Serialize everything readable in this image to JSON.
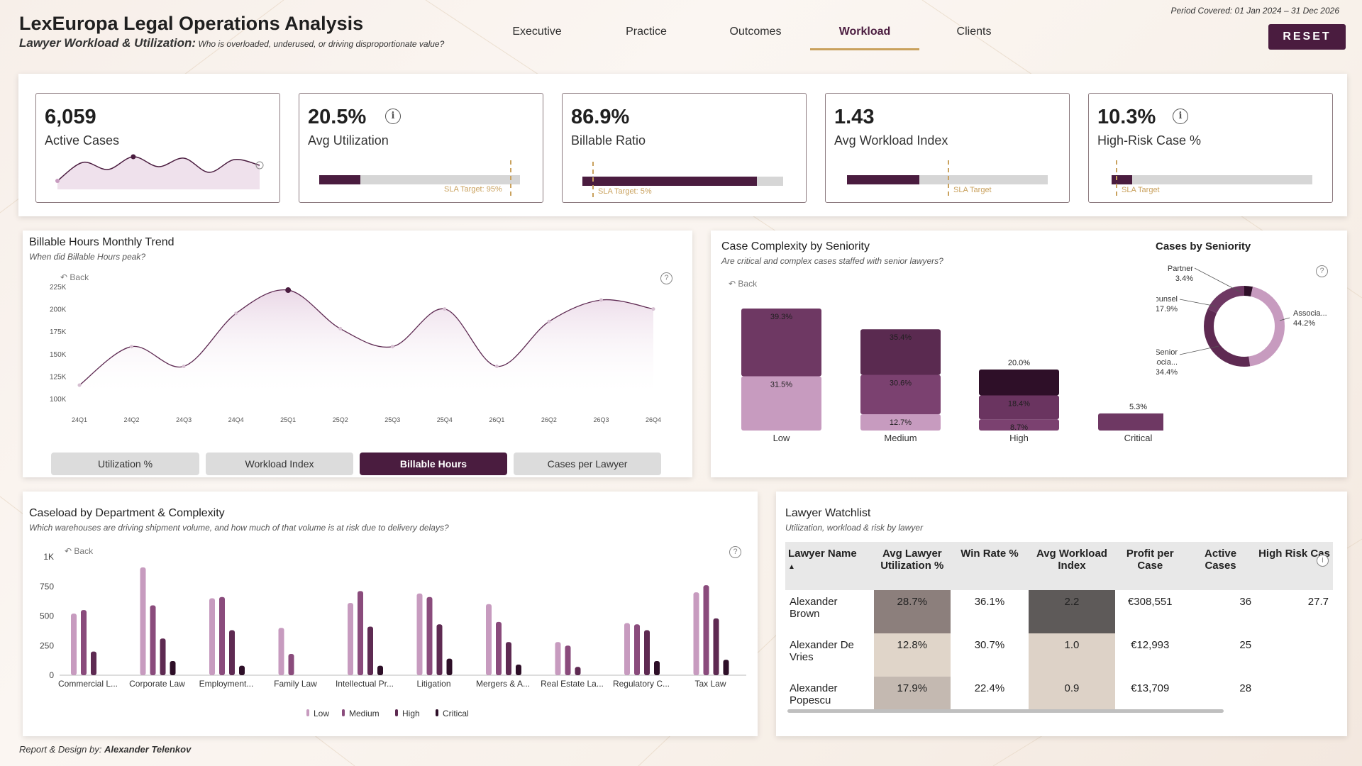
{
  "header": {
    "title": "LexEuropa Legal Operations Analysis",
    "subtitle_bold": "Lawyer Workload & Utilization:",
    "subtitle_rest": "Who is overloaded, underused, or driving disproportionate value?",
    "period": "Period Covered: 01 Jan 2024 – 31 Dec 2026",
    "reset_label": "RESET",
    "nav": [
      {
        "label": "Executive",
        "active": false
      },
      {
        "label": "Practice",
        "active": false
      },
      {
        "label": "Outcomes",
        "active": false
      },
      {
        "label": "Workload",
        "active": true
      },
      {
        "label": "Clients",
        "active": false
      }
    ]
  },
  "kpis": {
    "active_cases": {
      "value": "6,059",
      "label": "Active Cases"
    },
    "avg_utilization": {
      "value": "20.5%",
      "label": "Avg Utilization",
      "bar_fraction": 0.205,
      "sla_fraction": 0.95,
      "sla_label": "SLA Target: 95%"
    },
    "billable_ratio": {
      "value": "86.9%",
      "label": "Billable Ratio",
      "bar_fraction": 0.869,
      "sla_fraction": 0.05,
      "sla_label": "SLA Target: 5%"
    },
    "avg_workload_index": {
      "value": "1.43",
      "label": "Avg Workload Index",
      "bar_fraction": 0.36,
      "sla_fraction": 0.5,
      "sla_label": "SLA Target"
    },
    "high_risk_pct": {
      "value": "10.3%",
      "label": "High-Risk Case %",
      "bar_fraction": 0.103,
      "sla_fraction": 0.02,
      "sla_label": "SLA Target"
    }
  },
  "billable_trend": {
    "title": "Billable Hours Monthly Trend",
    "subtitle": "When did Billable Hours peak?",
    "back_label": "Back",
    "help": "?",
    "tabs": [
      {
        "label": "Utilization %",
        "active": false
      },
      {
        "label": "Workload Index",
        "active": false
      },
      {
        "label": "Billable Hours",
        "active": true
      },
      {
        "label": "Cases per Lawyer",
        "active": false
      }
    ]
  },
  "complexity": {
    "title": "Case Complexity by Seniority",
    "subtitle": "Are critical and complex cases staffed with senior lawyers?",
    "back_label": "Back"
  },
  "seniority_donut": {
    "title": "Cases by Seniority",
    "labels": [
      {
        "name": "Partner",
        "pct": "3.4%"
      },
      {
        "name": "Counsel",
        "pct": "17.9%"
      },
      {
        "name": "Associa...",
        "pct": "44.2%"
      },
      {
        "name": "Senior Associa...",
        "pct": "34.4%"
      }
    ]
  },
  "caseload": {
    "title": "Caseload by Department & Complexity",
    "subtitle": "Which warehouses are driving shipment volume, and how much of that volume is at risk due to delivery delays?",
    "back_label": "Back",
    "legend": [
      "Low",
      "Medium",
      "High",
      "Critical"
    ]
  },
  "watchlist": {
    "title": "Lawyer Watchlist",
    "subtitle": "Utilization, workload & risk by lawyer",
    "columns": [
      "Lawyer Name",
      "Avg Lawyer Utilization %",
      "Win Rate %",
      "Avg Workload Index",
      "Profit per Case",
      "Active Cases",
      "High Risk Cas"
    ],
    "rows": [
      {
        "name": "Alexander Brown",
        "util": "28.7%",
        "win": "36.1%",
        "wli": "2.2",
        "profit": "€308,551",
        "active": "36",
        "risk": "27.7"
      },
      {
        "name": "Alexander De Vries",
        "util": "12.8%",
        "win": "30.7%",
        "wli": "1.0",
        "profit": "€12,993",
        "active": "25",
        "risk": ""
      },
      {
        "name": "Alexander Popescu",
        "util": "17.9%",
        "win": "22.4%",
        "wli": "0.9",
        "profit": "€13,709",
        "active": "28",
        "risk": ""
      }
    ]
  },
  "footer": {
    "prefix": "Report & Design by:",
    "author": "Alexander Telenkov"
  },
  "colors": {
    "primary": "#4a1c3f",
    "gold": "#c9a15d",
    "low": "#c79bbf",
    "medium": "#8a4b7c",
    "high": "#5e2a52",
    "critical": "#2e0f28"
  },
  "chart_data": [
    {
      "type": "line",
      "title": "Billable Hours Monthly Trend",
      "categories": [
        "24Q1",
        "24Q2",
        "24Q3",
        "24Q4",
        "25Q1",
        "25Q2",
        "25Q3",
        "25Q4",
        "26Q1",
        "26Q2",
        "26Q3",
        "26Q4"
      ],
      "values": [
        115000,
        158000,
        136000,
        195000,
        221000,
        178000,
        158000,
        200000,
        136000,
        186000,
        210000,
        200000
      ],
      "ylim": [
        100000,
        225000
      ],
      "yticks": [
        "100K",
        "125K",
        "150K",
        "175K",
        "200K",
        "225K"
      ]
    },
    {
      "type": "bar",
      "title": "Case Complexity by Seniority",
      "categories": [
        "Low",
        "Medium",
        "High",
        "Critical"
      ],
      "stacked": true,
      "segments": [
        {
          "category": "Low",
          "stack": [
            {
              "value": 31.5,
              "label": "31.5%"
            },
            {
              "value": 39.3,
              "label": "39.3%"
            }
          ],
          "total": 100
        },
        {
          "category": "Medium",
          "stack": [
            {
              "value": 12.7,
              "label": "12.7%"
            },
            {
              "value": 30.6,
              "label": "30.6%"
            },
            {
              "value": 35.4,
              "label": "35.4%"
            }
          ],
          "total": 83
        },
        {
          "category": "High",
          "stack": [
            {
              "value": 8.7,
              "label": "8.7%"
            },
            {
              "value": 18.4,
              "label": "18.4%"
            },
            {
              "value": 20.0,
              "label": "20.0%"
            }
          ],
          "total": 50
        },
        {
          "category": "Critical",
          "stack": [
            {
              "value": 5.3,
              "label": "5.3%"
            }
          ],
          "total": 14
        }
      ]
    },
    {
      "type": "pie",
      "title": "Cases by Seniority",
      "slices": [
        {
          "name": "Partner",
          "value": 3.4
        },
        {
          "name": "Counsel",
          "value": 17.9
        },
        {
          "name": "Associa...",
          "value": 44.2
        },
        {
          "name": "Senior Associa...",
          "value": 34.4
        }
      ]
    },
    {
      "type": "bar",
      "title": "Caseload by Department & Complexity",
      "categories": [
        "Commercial L...",
        "Corporate Law",
        "Employment...",
        "Family Law",
        "Intellectual Pr...",
        "Litigation",
        "Mergers & A...",
        "Real Estate La...",
        "Regulatory C...",
        "Tax Law"
      ],
      "ylim": [
        0,
        1000
      ],
      "yticks": [
        "0",
        "250",
        "500",
        "750",
        "1K"
      ],
      "series": [
        {
          "name": "Low",
          "values": [
            520,
            910,
            650,
            400,
            610,
            690,
            600,
            280,
            440,
            700
          ]
        },
        {
          "name": "Medium",
          "values": [
            550,
            590,
            660,
            180,
            710,
            660,
            450,
            250,
            430,
            760
          ]
        },
        {
          "name": "High",
          "values": [
            200,
            310,
            380,
            0,
            410,
            430,
            280,
            70,
            380,
            480
          ]
        },
        {
          "name": "Critical",
          "values": [
            0,
            120,
            80,
            0,
            80,
            140,
            90,
            0,
            120,
            130
          ]
        }
      ]
    },
    {
      "type": "line",
      "title": "Active Cases sparkline",
      "values": [
        12,
        38,
        28,
        46,
        32,
        44,
        24,
        42,
        34
      ],
      "ylim": [
        0,
        50
      ]
    }
  ]
}
